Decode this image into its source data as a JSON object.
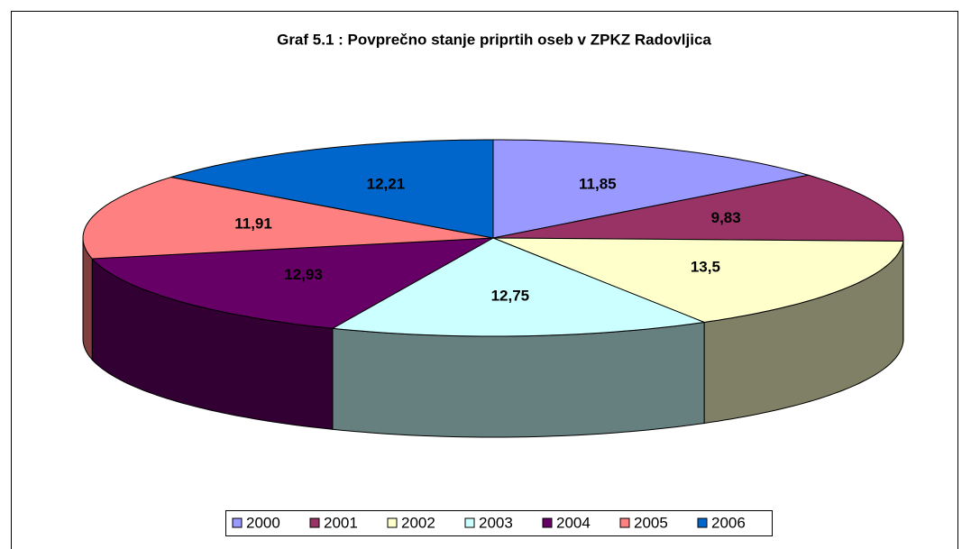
{
  "chart_data": {
    "type": "pie",
    "title": "Graf 5.1 : Povprečno stanje priprtih oseb v ZPKZ Radovljica",
    "categories": [
      "2000",
      "2001",
      "2002",
      "2003",
      "2004",
      "2005",
      "2006"
    ],
    "values": [
      11.85,
      9.83,
      13.5,
      12.75,
      12.93,
      11.91,
      12.21
    ],
    "value_labels": [
      "11,85",
      "9,83",
      "13,5",
      "12,75",
      "12,93",
      "11,91",
      "12,21"
    ],
    "colors": [
      "#9999ff",
      "#993366",
      "#ffffcc",
      "#ccffff",
      "#660066",
      "#ff8080",
      "#0066cc"
    ],
    "legend": "bottom"
  }
}
